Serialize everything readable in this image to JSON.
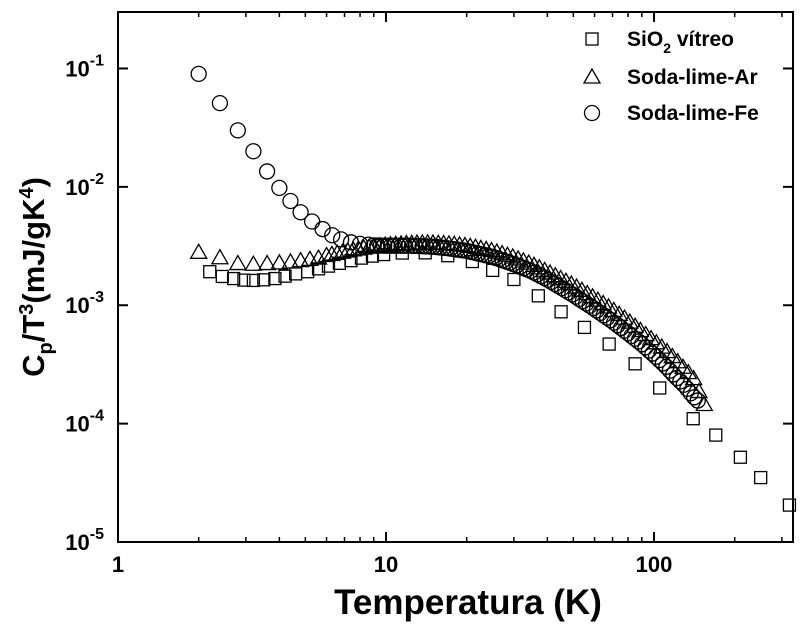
{
  "chart_data": {
    "type": "scatter",
    "x_scale": "log",
    "y_scale": "log",
    "xlim": [
      1,
      330
    ],
    "ylim": [
      1e-05,
      0.3
    ],
    "xlabel": "Temperatura (K)",
    "ylabel": {
      "parts": [
        "C",
        "p",
        "/T",
        "3",
        "(mJ/gK",
        "4",
        ")"
      ]
    },
    "x_ticks": [
      {
        "value": 1,
        "label": "1"
      },
      {
        "value": 10,
        "label": "10"
      },
      {
        "value": 100,
        "label": "100"
      }
    ],
    "y_ticks": [
      {
        "value": 1e-05,
        "base": "10",
        "exp": "-5"
      },
      {
        "value": 0.0001,
        "base": "10",
        "exp": "-4"
      },
      {
        "value": 0.001,
        "base": "10",
        "exp": "-3"
      },
      {
        "value": 0.01,
        "base": "10",
        "exp": "-2"
      },
      {
        "value": 0.1,
        "base": "10",
        "exp": "-1"
      }
    ],
    "grid": false,
    "legend": {
      "position": "top-right",
      "entries": [
        {
          "series": 0,
          "text_parts": [
            "SiO",
            "2",
            " vítreo"
          ]
        },
        {
          "series": 1,
          "text_parts": [
            "Soda-lime-Ar"
          ]
        },
        {
          "series": 2,
          "text_parts": [
            "Soda-lime-Fe"
          ]
        }
      ]
    },
    "series": [
      {
        "name": "SiO2 vítreo",
        "marker": "square",
        "points": [
          [
            2.2,
            0.00192
          ],
          [
            2.45,
            0.00175
          ],
          [
            2.7,
            0.00168
          ],
          [
            2.95,
            0.00163
          ],
          [
            3.2,
            0.00162
          ],
          [
            3.5,
            0.00164
          ],
          [
            3.85,
            0.00168
          ],
          [
            4.2,
            0.00176
          ],
          [
            4.6,
            0.00184
          ],
          [
            5.1,
            0.00192
          ],
          [
            5.6,
            0.00203
          ],
          [
            6.1,
            0.00214
          ],
          [
            6.7,
            0.00226
          ],
          [
            7.4,
            0.00238
          ],
          [
            8.1,
            0.0025
          ],
          [
            8.9,
            0.0026
          ],
          [
            9.8,
            0.00268
          ],
          [
            11.5,
            0.00276
          ],
          [
            14,
            0.00277
          ],
          [
            17,
            0.00262
          ],
          [
            21,
            0.00234
          ],
          [
            25,
            0.00197
          ],
          [
            30,
            0.00165
          ],
          [
            37,
            0.0012
          ],
          [
            45,
            0.00088
          ],
          [
            55,
            0.00065
          ],
          [
            68,
            0.00047
          ],
          [
            85,
            0.00032
          ],
          [
            105,
            0.0002
          ],
          [
            140,
            0.00011
          ],
          [
            170,
            8e-05
          ],
          [
            210,
            5.2e-05
          ],
          [
            250,
            3.5e-05
          ],
          [
            320,
            2.05e-05
          ]
        ]
      },
      {
        "name": "Soda-lime-Ar",
        "marker": "triangle",
        "dense_range": [
          6,
          154,
          72
        ],
        "points": [
          [
            2.0,
            0.0028
          ],
          [
            2.4,
            0.00252
          ],
          [
            2.8,
            0.00225
          ],
          [
            3.2,
            0.00222
          ],
          [
            3.6,
            0.00225
          ],
          [
            4.0,
            0.00228
          ],
          [
            4.4,
            0.00232
          ],
          [
            4.8,
            0.00238
          ],
          [
            5.2,
            0.00244
          ],
          [
            5.6,
            0.0025
          ],
          [
            6,
            0.00263
          ],
          [
            6.5,
            0.00273
          ],
          [
            7,
            0.00283
          ],
          [
            7.5,
            0.00293
          ],
          [
            8,
            0.003
          ],
          [
            8.5,
            0.00307
          ],
          [
            9,
            0.00313
          ],
          [
            9.5,
            0.00318
          ],
          [
            10,
            0.00322
          ],
          [
            11,
            0.00328
          ],
          [
            12,
            0.00332
          ],
          [
            13,
            0.00335
          ],
          [
            14,
            0.00336
          ],
          [
            15,
            0.00335
          ],
          [
            16,
            0.00333
          ],
          [
            18,
            0.00327
          ],
          [
            20,
            0.00318
          ],
          [
            22,
            0.00306
          ],
          [
            25,
            0.00288
          ],
          [
            30,
            0.00254
          ],
          [
            35,
            0.00222
          ],
          [
            40,
            0.00192
          ],
          [
            50,
            0.00148
          ],
          [
            60,
            0.00115
          ],
          [
            70,
            0.00092
          ],
          [
            80,
            0.00074
          ],
          [
            90,
            0.0006
          ],
          [
            100,
            0.0005
          ],
          [
            110,
            0.00042
          ],
          [
            120,
            0.00035
          ],
          [
            130,
            0.00029
          ],
          [
            140,
            0.000245
          ],
          [
            154,
            0.000145
          ]
        ]
      },
      {
        "name": "Soda-lime-Fe",
        "marker": "circle",
        "dense_range": [
          9,
          150,
          95
        ],
        "points": [
          [
            2.0,
            0.09
          ],
          [
            2.4,
            0.051
          ],
          [
            2.8,
            0.03
          ],
          [
            3.2,
            0.02
          ],
          [
            3.6,
            0.0135
          ],
          [
            4.0,
            0.0098
          ],
          [
            4.4,
            0.0076
          ],
          [
            4.8,
            0.0061
          ],
          [
            5.3,
            0.0051
          ],
          [
            5.8,
            0.0044
          ],
          [
            6.3,
            0.0039
          ],
          [
            6.8,
            0.0036
          ],
          [
            7.4,
            0.0034
          ],
          [
            8,
            0.0033
          ],
          [
            8.6,
            0.00325
          ],
          [
            9,
            0.0032
          ],
          [
            10,
            0.00318
          ],
          [
            11,
            0.00318
          ],
          [
            12,
            0.00318
          ],
          [
            13,
            0.00317
          ],
          [
            15,
            0.00312
          ],
          [
            17,
            0.00303
          ],
          [
            20,
            0.00288
          ],
          [
            25,
            0.00256
          ],
          [
            30,
            0.00222
          ],
          [
            35,
            0.00193
          ],
          [
            40,
            0.00165
          ],
          [
            50,
            0.00122
          ],
          [
            60,
            0.00093
          ],
          [
            70,
            0.00073
          ],
          [
            80,
            0.00058
          ],
          [
            90,
            0.00047
          ],
          [
            100,
            0.00038
          ],
          [
            110,
            0.00031
          ],
          [
            120,
            0.00025
          ],
          [
            130,
            0.00021
          ],
          [
            140,
            0.00017
          ],
          [
            150,
            0.000147
          ]
        ]
      }
    ]
  }
}
